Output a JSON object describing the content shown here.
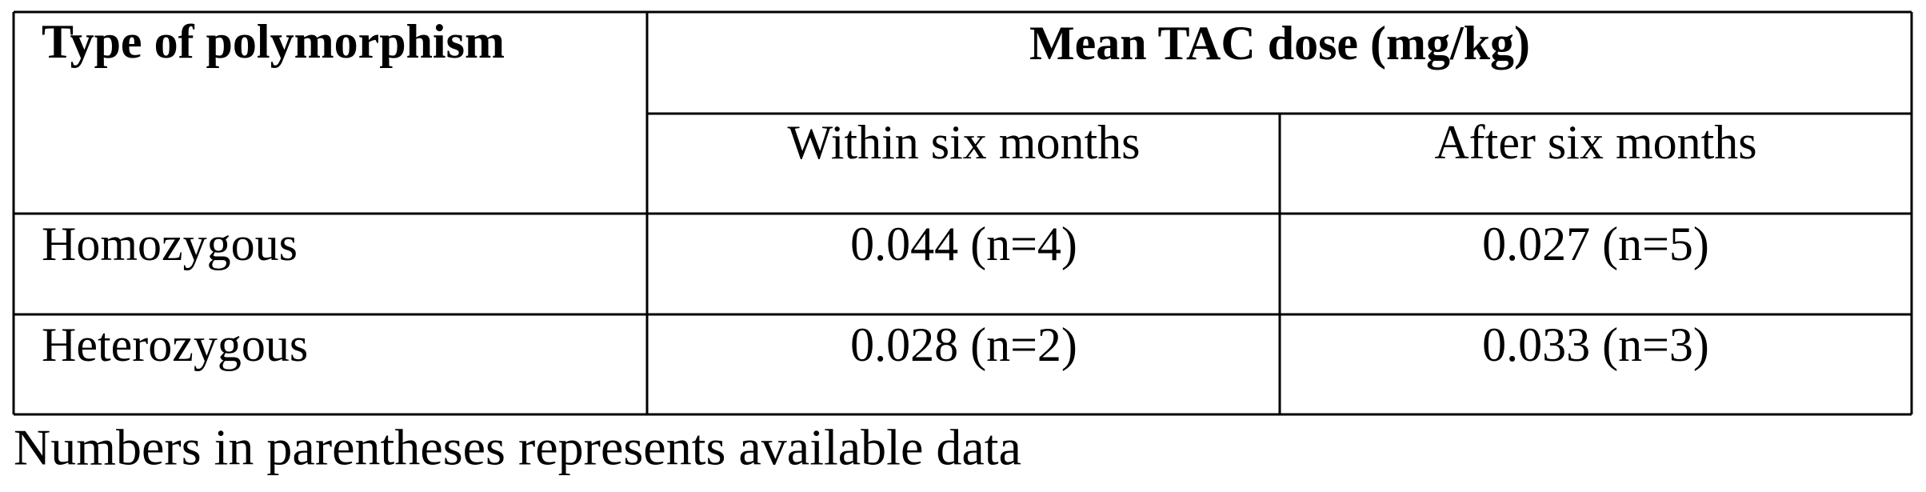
{
  "table": {
    "header": {
      "first": "Type of polymorphism",
      "group": "Mean TAC dose (mg/kg)",
      "sub": [
        "Within six months",
        "After six months"
      ]
    },
    "rows": [
      [
        "Homozygous",
        "0.044 (n=4)",
        "0.027 (n=5)"
      ],
      [
        "Heterozygous",
        "0.028 (n=2)",
        "0.033 (n=3)"
      ]
    ]
  },
  "caption": "Numbers in parentheses represents available data"
}
